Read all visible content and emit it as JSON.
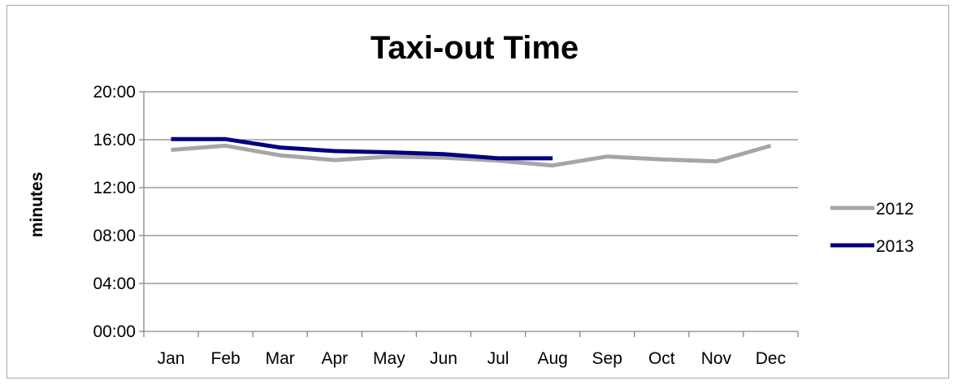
{
  "chart_data": {
    "type": "line",
    "title": "Taxi-out Time",
    "xlabel": "",
    "ylabel": "minutes",
    "categories": [
      "Jan",
      "Feb",
      "Mar",
      "Apr",
      "May",
      "Jun",
      "Jul",
      "Aug",
      "Sep",
      "Oct",
      "Nov",
      "Dec"
    ],
    "y_unit": "minutes",
    "ylim": [
      0,
      20
    ],
    "y_ticks": [
      0,
      4,
      8,
      12,
      16,
      20
    ],
    "y_tick_labels": [
      "00:00",
      "04:00",
      "08:00",
      "12:00",
      "16:00",
      "20:00"
    ],
    "grid": true,
    "legend_position": "right",
    "series": [
      {
        "name": "2012",
        "color": "#a6a6a6",
        "values": [
          15.15,
          15.5,
          14.7,
          14.3,
          14.6,
          14.5,
          14.25,
          13.85,
          14.6,
          14.35,
          14.2,
          15.5
        ]
      },
      {
        "name": "2013",
        "color": "#000080",
        "values": [
          16.05,
          16.05,
          15.35,
          15.05,
          14.95,
          14.8,
          14.45,
          14.45,
          null,
          null,
          null,
          null
        ]
      }
    ]
  }
}
